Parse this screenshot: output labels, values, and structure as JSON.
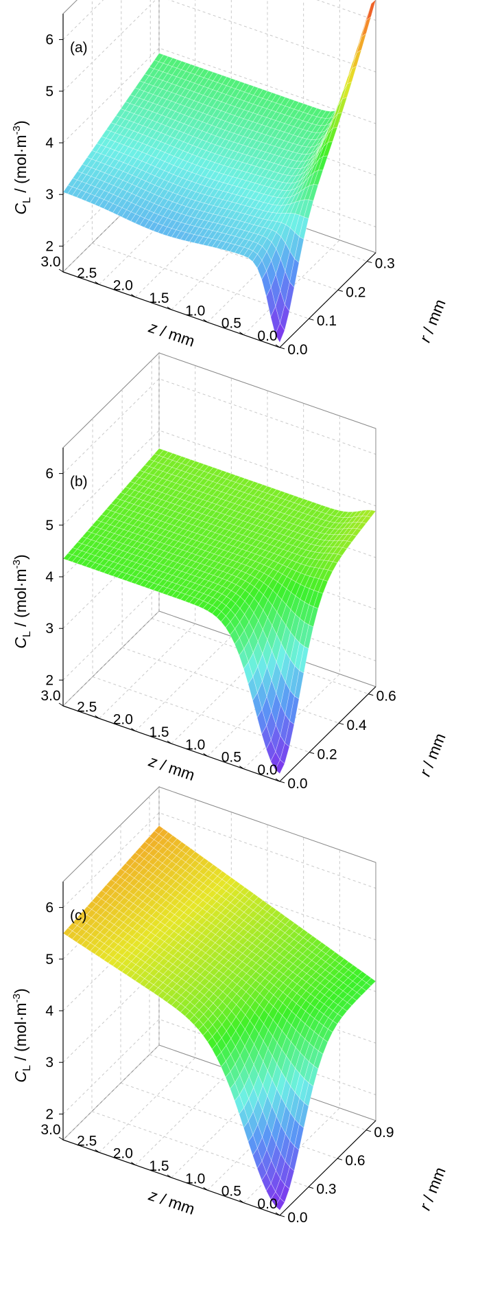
{
  "chart_data": [
    {
      "type": "surface3d",
      "panel_label": "(a)",
      "xlabel": "z / mm",
      "ylabel": "r / mm",
      "zlabel": "C_L / (mol·m^-3)",
      "zlabel_parts": {
        "sym": "C",
        "sub": "L",
        "unit": " / (mol·m",
        "sup": "-3",
        "close": ")"
      },
      "z_ticks": [
        "3.0",
        "2.5",
        "2.0",
        "1.5",
        "1.0",
        "0.5",
        "0.0"
      ],
      "r_ticks": [
        "0.0",
        "0.1",
        "0.2",
        "0.3"
      ],
      "c_ticks": [
        "2",
        "3",
        "4",
        "5",
        "6"
      ],
      "c_min": 1.5,
      "c_max": 6.5,
      "description": "Plateau near 2.9–3.9 mol/m3 over z>0.5 mm; sharp dip to ~1.7 at z≈0, r≈0; rises to ~6.3 at z=0, r=0.33 mm"
    },
    {
      "type": "surface3d",
      "panel_label": "(b)",
      "xlabel": "z / mm",
      "ylabel": "r / mm",
      "zlabel": "C_L / (mol·m^-3)",
      "zlabel_parts": {
        "sym": "C",
        "sub": "L",
        "unit": " / (mol·m",
        "sup": "-3",
        "close": ")"
      },
      "z_ticks": [
        "3.0",
        "2.5",
        "2.0",
        "1.5",
        "1.0",
        "0.5",
        "0.0"
      ],
      "r_ticks": [
        "0.0",
        "0.2",
        "0.4",
        "0.6"
      ],
      "c_ticks": [
        "2",
        "3",
        "4",
        "5",
        "6"
      ],
      "c_min": 1.5,
      "c_max": 6.5,
      "description": "Nearly flat at ~4.3–4.6 mol/m3; deep dip to ~1.7 near z=0, r=0"
    },
    {
      "type": "surface3d",
      "panel_label": "(c)",
      "xlabel": "z / mm",
      "ylabel": "r / mm",
      "zlabel": "C_L / (mol·m^-3)",
      "zlabel_parts": {
        "sym": "C",
        "sub": "L",
        "unit": " / (mol·m",
        "sup": "-3",
        "close": ")"
      },
      "z_ticks": [
        "3.0",
        "2.5",
        "2.0",
        "1.5",
        "1.0",
        "0.5",
        "0.0"
      ],
      "r_ticks": [
        "0.0",
        "0.3",
        "0.6",
        "0.9"
      ],
      "c_ticks": [
        "2",
        "3",
        "4",
        "5",
        "6"
      ],
      "c_min": 1.5,
      "c_max": 6.5,
      "description": "Decreases from ~5.5 at z=3.0 toward ~4.3 at z=0; deep dip to ~1.7 near z=0, r=0"
    }
  ]
}
